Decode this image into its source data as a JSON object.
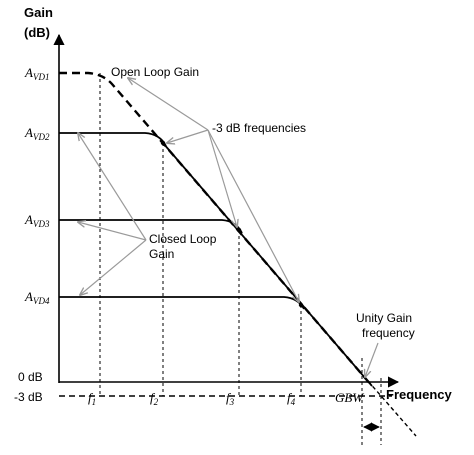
{
  "axes": {
    "y_label_line1": "Gain",
    "y_label_line2": "(dB)",
    "x_label": "Frequency",
    "zero_db": "0 dB",
    "minus3_db": "-3 dB"
  },
  "gain_levels": [
    {
      "main": "A",
      "sub": "VD1"
    },
    {
      "main": "A",
      "sub": "VD2"
    },
    {
      "main": "A",
      "sub": "VD3"
    },
    {
      "main": "A",
      "sub": "VD4"
    }
  ],
  "freq_marks": [
    {
      "main": "f",
      "sub": "1"
    },
    {
      "main": "f",
      "sub": "2"
    },
    {
      "main": "f",
      "sub": "3"
    },
    {
      "main": "f",
      "sub": "4"
    }
  ],
  "gbw_label": "GBW",
  "annotations": {
    "open_loop": "Open Loop Gain",
    "minus3_freqs": "-3 dB frequencies",
    "closed_loop_line1": "Closed Loop",
    "closed_loop_line2": "Gain",
    "unity_line1": "Unity Gain",
    "unity_line2": "frequency"
  },
  "colors": {
    "curve": "#000000",
    "arrow": "#9a9a9a"
  }
}
